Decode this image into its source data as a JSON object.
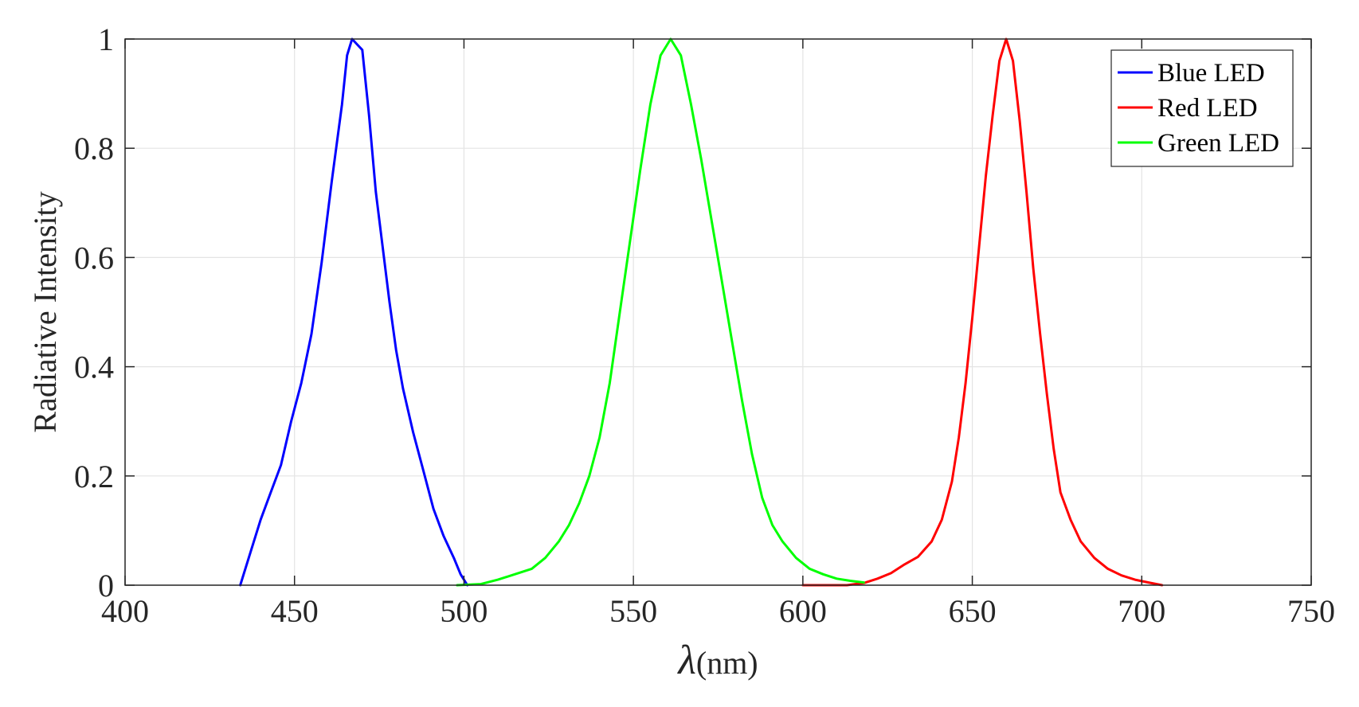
{
  "chart_data": {
    "type": "line",
    "xlabel": {
      "symbol": "λ",
      "unit": "(nm)"
    },
    "ylabel": "Radiative Intensity",
    "xlim": [
      400,
      750
    ],
    "ylim": [
      0,
      1
    ],
    "xticks": [
      "400",
      "450",
      "500",
      "550",
      "600",
      "650",
      "700",
      "750"
    ],
    "yticks": [
      "0",
      "0.2",
      "0.4",
      "0.6",
      "0.8",
      "1"
    ],
    "grid": true,
    "box": true,
    "legend": {
      "position": "top-right"
    },
    "series": [
      {
        "name": "Blue LED",
        "color": "#0000ff",
        "points": [
          [
            434,
            0.0
          ],
          [
            437,
            0.06
          ],
          [
            440,
            0.12
          ],
          [
            443,
            0.17
          ],
          [
            446,
            0.22
          ],
          [
            449,
            0.3
          ],
          [
            452,
            0.37
          ],
          [
            455,
            0.46
          ],
          [
            458,
            0.59
          ],
          [
            461,
            0.74
          ],
          [
            464,
            0.88
          ],
          [
            465.5,
            0.97
          ],
          [
            467,
            1.0
          ],
          [
            468.5,
            0.99
          ],
          [
            470,
            0.98
          ],
          [
            472,
            0.86
          ],
          [
            474,
            0.72
          ],
          [
            476,
            0.62
          ],
          [
            478,
            0.52
          ],
          [
            480,
            0.43
          ],
          [
            482,
            0.36
          ],
          [
            485,
            0.28
          ],
          [
            488,
            0.21
          ],
          [
            491,
            0.14
          ],
          [
            494,
            0.09
          ],
          [
            497,
            0.05
          ],
          [
            499,
            0.02
          ],
          [
            501,
            0.0
          ]
        ]
      },
      {
        "name": "Red LED",
        "color": "#ff0000",
        "points": [
          [
            600,
            0.0
          ],
          [
            602,
            0.0
          ],
          [
            613,
            0.0
          ],
          [
            618,
            0.004
          ],
          [
            622,
            0.012
          ],
          [
            626,
            0.022
          ],
          [
            630,
            0.038
          ],
          [
            634,
            0.052
          ],
          [
            638,
            0.08
          ],
          [
            641,
            0.12
          ],
          [
            644,
            0.19
          ],
          [
            646,
            0.27
          ],
          [
            648,
            0.37
          ],
          [
            650,
            0.49
          ],
          [
            652,
            0.62
          ],
          [
            654,
            0.75
          ],
          [
            656,
            0.86
          ],
          [
            658,
            0.96
          ],
          [
            660,
            1.0
          ],
          [
            662,
            0.96
          ],
          [
            664,
            0.85
          ],
          [
            666,
            0.72
          ],
          [
            668,
            0.58
          ],
          [
            670,
            0.46
          ],
          [
            672,
            0.35
          ],
          [
            674,
            0.25
          ],
          [
            676,
            0.17
          ],
          [
            679,
            0.12
          ],
          [
            682,
            0.08
          ],
          [
            686,
            0.05
          ],
          [
            690,
            0.03
          ],
          [
            694,
            0.018
          ],
          [
            698,
            0.01
          ],
          [
            702,
            0.005
          ],
          [
            706,
            0.0
          ]
        ]
      },
      {
        "name": "Green LED",
        "color": "#00ff00",
        "points": [
          [
            498,
            0.0
          ],
          [
            505,
            0.002
          ],
          [
            510,
            0.01
          ],
          [
            515,
            0.02
          ],
          [
            520,
            0.03
          ],
          [
            524,
            0.05
          ],
          [
            528,
            0.08
          ],
          [
            531,
            0.11
          ],
          [
            534,
            0.15
          ],
          [
            537,
            0.2
          ],
          [
            540,
            0.27
          ],
          [
            543,
            0.37
          ],
          [
            546,
            0.5
          ],
          [
            549,
            0.63
          ],
          [
            552,
            0.76
          ],
          [
            555,
            0.88
          ],
          [
            558,
            0.97
          ],
          [
            561,
            1.0
          ],
          [
            564,
            0.97
          ],
          [
            567,
            0.88
          ],
          [
            570,
            0.78
          ],
          [
            573,
            0.67
          ],
          [
            576,
            0.56
          ],
          [
            579,
            0.45
          ],
          [
            582,
            0.34
          ],
          [
            585,
            0.24
          ],
          [
            588,
            0.16
          ],
          [
            591,
            0.11
          ],
          [
            594,
            0.08
          ],
          [
            598,
            0.05
          ],
          [
            602,
            0.03
          ],
          [
            606,
            0.02
          ],
          [
            610,
            0.012
          ],
          [
            614,
            0.008
          ],
          [
            618,
            0.005
          ]
        ]
      }
    ]
  }
}
